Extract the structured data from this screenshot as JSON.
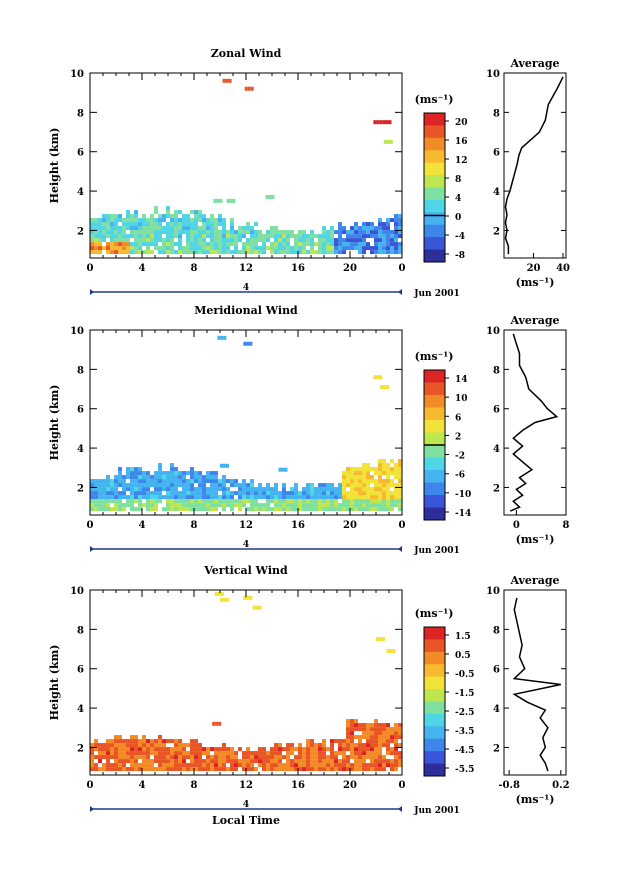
{
  "chart_data": [
    {
      "type": "heatmap",
      "title": "Zonal Wind",
      "ylabel": "Height (km)",
      "xlabel": "",
      "x_ticks": [
        "0",
        "4",
        "8",
        "12",
        "16",
        "20",
        "0"
      ],
      "xlim": [
        0,
        24
      ],
      "y_ticks": [
        "2",
        "4",
        "6",
        "8",
        "10"
      ],
      "ylim": [
        0.6,
        10
      ],
      "date_label": "Jun 2001",
      "day_label": "4",
      "colorbar": {
        "unit": "(ms⁻¹)",
        "tick_labels": [
          "20",
          "16",
          "12",
          "8",
          "4",
          "0",
          "-4",
          "-8"
        ],
        "range": [
          -10,
          22
        ],
        "contour_level": 0
      },
      "average": {
        "title": "Average",
        "xlabel": "(ms⁻¹)",
        "x_tick_labels": [
          "20",
          "40"
        ],
        "xlim": [
          0,
          42
        ],
        "y_tick_labels": [
          "2",
          "4",
          "6",
          "8",
          "10"
        ],
        "ylim": [
          0.6,
          10
        ],
        "profile": [
          {
            "x": 3,
            "y": 0.8
          },
          {
            "x": 3,
            "y": 1.2
          },
          {
            "x": 1,
            "y": 1.6
          },
          {
            "x": 2,
            "y": 2.0
          },
          {
            "x": 1,
            "y": 2.4
          },
          {
            "x": 2,
            "y": 2.8
          },
          {
            "x": 1,
            "y": 3.2
          },
          {
            "x": 2,
            "y": 3.6
          },
          {
            "x": 3,
            "y": 3.8
          },
          {
            "x": 4,
            "y": 4.0
          },
          {
            "x": 9,
            "y": 5.4
          },
          {
            "x": 10,
            "y": 5.8
          },
          {
            "x": 12,
            "y": 6.2
          },
          {
            "x": 18,
            "y": 6.6
          },
          {
            "x": 24,
            "y": 7.0
          },
          {
            "x": 28,
            "y": 7.6
          },
          {
            "x": 29,
            "y": 8.0
          },
          {
            "x": 30,
            "y": 8.4
          },
          {
            "x": 33,
            "y": 8.8
          },
          {
            "x": 36,
            "y": 9.2
          },
          {
            "x": 38,
            "y": 9.5
          },
          {
            "x": 40,
            "y": 9.8
          }
        ]
      }
    },
    {
      "type": "heatmap",
      "title": "Meridional Wind",
      "ylabel": "Height (km)",
      "xlabel": "",
      "x_ticks": [
        "0",
        "4",
        "8",
        "12",
        "16",
        "20",
        "0"
      ],
      "xlim": [
        0,
        24
      ],
      "y_ticks": [
        "2",
        "4",
        "6",
        "8",
        "10"
      ],
      "ylim": [
        0.6,
        10
      ],
      "date_label": "Jun 2001",
      "day_label": "4",
      "colorbar": {
        "unit": "(ms⁻¹)",
        "tick_labels": [
          "14",
          "10",
          "6",
          "2",
          "-2",
          "-6",
          "-10",
          "-14"
        ],
        "range": [
          -16,
          16
        ],
        "contour_level": 0
      },
      "average": {
        "title": "Average",
        "xlabel": "(ms⁻¹)",
        "x_tick_labels": [
          "0",
          "8"
        ],
        "xlim": [
          -2,
          8
        ],
        "y_tick_labels": [
          "2",
          "4",
          "6",
          "8",
          "10"
        ],
        "ylim": [
          0.6,
          10
        ],
        "profile": [
          {
            "x": -1.0,
            "y": 0.8
          },
          {
            "x": 0.5,
            "y": 1.0
          },
          {
            "x": -0.5,
            "y": 1.3
          },
          {
            "x": 1.0,
            "y": 1.6
          },
          {
            "x": 0.0,
            "y": 1.9
          },
          {
            "x": 1.5,
            "y": 2.2
          },
          {
            "x": 0.5,
            "y": 2.5
          },
          {
            "x": 2.5,
            "y": 2.9
          },
          {
            "x": 1.0,
            "y": 3.3
          },
          {
            "x": -0.5,
            "y": 3.7
          },
          {
            "x": 1.0,
            "y": 4.1
          },
          {
            "x": -0.5,
            "y": 4.5
          },
          {
            "x": 1.0,
            "y": 4.9
          },
          {
            "x": 3.0,
            "y": 5.3
          },
          {
            "x": 6.5,
            "y": 5.6
          },
          {
            "x": 5.0,
            "y": 6.0
          },
          {
            "x": 4.0,
            "y": 6.4
          },
          {
            "x": 2.0,
            "y": 7.0
          },
          {
            "x": 1.5,
            "y": 7.6
          },
          {
            "x": 0.5,
            "y": 8.2
          },
          {
            "x": 0.5,
            "y": 8.8
          },
          {
            "x": 0.0,
            "y": 9.3
          },
          {
            "x": -0.5,
            "y": 9.8
          }
        ]
      }
    },
    {
      "type": "heatmap",
      "title": "Vertical Wind",
      "ylabel": "Height (km)",
      "xlabel": "Local Time",
      "x_ticks": [
        "0",
        "4",
        "8",
        "12",
        "16",
        "20",
        "0"
      ],
      "xlim": [
        0,
        24
      ],
      "y_ticks": [
        "2",
        "4",
        "6",
        "8",
        "10"
      ],
      "ylim": [
        0.6,
        10
      ],
      "date_label": "Jun 2001",
      "day_label": "4",
      "colorbar": {
        "unit": "(ms⁻¹)",
        "tick_labels": [
          "1.5",
          "0.5",
          "-0.5",
          "-1.5",
          "-2.5",
          "-3.5",
          "-4.5",
          "-5.5"
        ],
        "range": [
          -6,
          2
        ],
        "contour_level": null
      },
      "average": {
        "title": "Average",
        "xlabel": "(ms⁻¹)",
        "x_tick_labels": [
          "-0.8",
          "0.2"
        ],
        "xlim": [
          -0.9,
          0.3
        ],
        "y_tick_labels": [
          "2",
          "4",
          "6",
          "8",
          "10"
        ],
        "ylim": [
          0.6,
          10
        ],
        "profile": [
          {
            "x": -0.05,
            "y": 0.8
          },
          {
            "x": -0.1,
            "y": 1.2
          },
          {
            "x": -0.2,
            "y": 1.6
          },
          {
            "x": -0.1,
            "y": 2.0
          },
          {
            "x": -0.15,
            "y": 2.5
          },
          {
            "x": -0.05,
            "y": 3.0
          },
          {
            "x": -0.2,
            "y": 3.5
          },
          {
            "x": -0.1,
            "y": 3.9
          },
          {
            "x": -0.45,
            "y": 4.3
          },
          {
            "x": -0.7,
            "y": 4.7
          },
          {
            "x": 0.2,
            "y": 5.2
          },
          {
            "x": -0.7,
            "y": 5.5
          },
          {
            "x": -0.5,
            "y": 6.0
          },
          {
            "x": -0.6,
            "y": 6.6
          },
          {
            "x": -0.55,
            "y": 7.2
          },
          {
            "x": -0.6,
            "y": 7.8
          },
          {
            "x": -0.65,
            "y": 8.4
          },
          {
            "x": -0.7,
            "y": 9.0
          },
          {
            "x": -0.65,
            "y": 9.6
          }
        ]
      }
    }
  ]
}
